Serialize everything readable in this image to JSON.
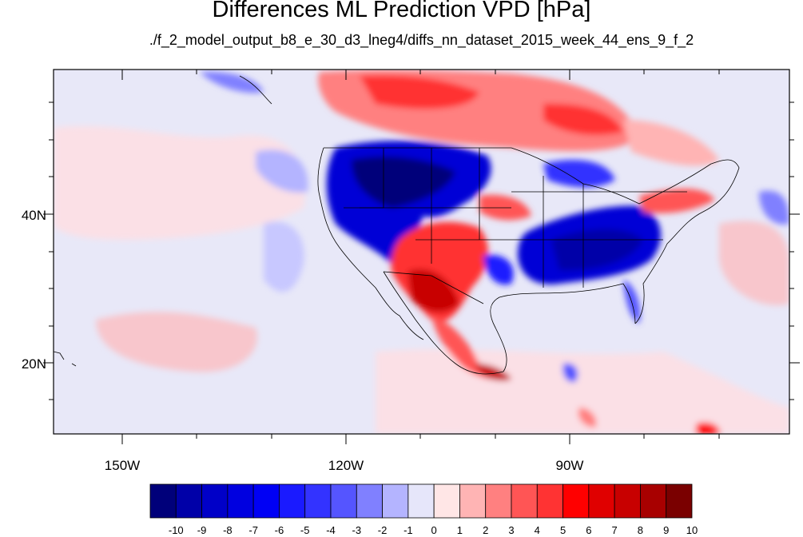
{
  "title": "Differences ML Prediction VPD [hPa]",
  "subtitle": "./f_2_model_output_b8_e_30_d3_lneg4/diffs_nn_dataset_2015_week_44_ens_9_f_2",
  "map": {
    "projection": "cylindrical equidistant",
    "lon_range": [
      -165,
      -115
    ],
    "lat_range": [
      10.5,
      59
    ],
    "lon_ticks": [
      {
        "value": -150,
        "label": "150W"
      },
      {
        "value": -120,
        "label": "120W"
      },
      {
        "value": -90,
        "label": "90W"
      }
    ],
    "lat_ticks": [
      {
        "value": 40,
        "label": "40N"
      },
      {
        "value": 20,
        "label": "20N"
      }
    ],
    "features": [
      "coastlines",
      "US state boundaries",
      "national boundaries"
    ],
    "regions": [
      {
        "name": "northwest-us-negative-anomaly",
        "sign": "negative"
      },
      {
        "name": "southwest-us-mexico-positive-anomaly",
        "sign": "positive"
      },
      {
        "name": "southeast-us-negative-anomaly",
        "sign": "negative"
      },
      {
        "name": "canada-positive-anomaly",
        "sign": "positive"
      },
      {
        "name": "great-lakes-negative-anomaly",
        "sign": "negative"
      },
      {
        "name": "northeast-us-positive-anomaly",
        "sign": "positive"
      }
    ]
  },
  "colorbar": {
    "labels": [
      "-10",
      "-9",
      "-8",
      "-7",
      "-6",
      "-5",
      "-4",
      "-3",
      "-2",
      "-1",
      "0",
      "1",
      "2",
      "3",
      "4",
      "5",
      "6",
      "7",
      "8",
      "9",
      "10"
    ],
    "colors": [
      "#00007a",
      "#0000a8",
      "#0000c8",
      "#0000e0",
      "#0000f5",
      "#1a1aff",
      "#3333ff",
      "#5555ff",
      "#8080ff",
      "#b4b4ff",
      "#e6e6fa",
      "#ffe6e6",
      "#ffb4b4",
      "#ff8080",
      "#ff5555",
      "#ff3333",
      "#ff0000",
      "#e00000",
      "#c80000",
      "#a80000",
      "#7a0000"
    ]
  }
}
